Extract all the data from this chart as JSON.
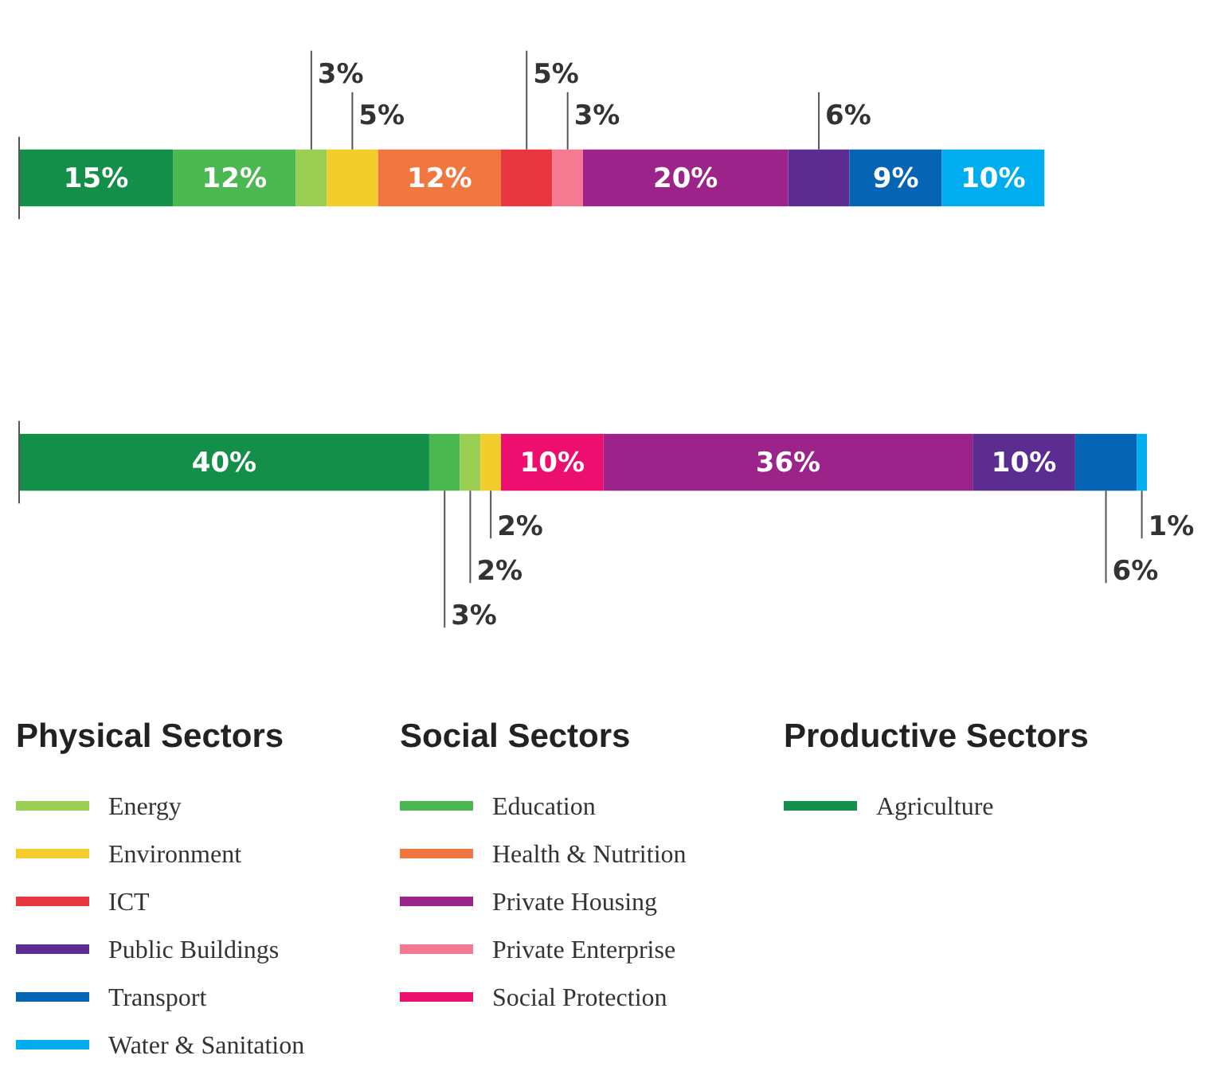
{
  "chart_data": {
    "type": "bar",
    "orientation": "horizontal",
    "stacked": true,
    "categories": [
      null,
      null
    ],
    "legend": "bottom",
    "annotations": [
      "Physical Sectors",
      "Social Sectors",
      "Productive Sectors"
    ],
    "series": [
      {
        "name": "Agriculture",
        "color": "#148f49",
        "values": [
          15,
          40
        ],
        "value_labels": [
          "15%",
          "40%"
        ]
      },
      {
        "name": "Education",
        "color": "#4cb851",
        "values": [
          12,
          3
        ],
        "value_labels": [
          "12%",
          "3%"
        ]
      },
      {
        "name": "Energy",
        "color": "#9bcf53",
        "values": [
          3,
          2
        ],
        "value_labels": [
          "3%",
          "2%"
        ]
      },
      {
        "name": "Environment",
        "color": "#f2cd2c",
        "values": [
          5,
          2
        ],
        "value_labels": [
          "5%",
          "2%"
        ]
      },
      {
        "name": "Health & Nutrition",
        "color": "#f07840",
        "values": [
          12,
          null
        ],
        "value_labels": [
          "12%",
          null
        ]
      },
      {
        "name": "ICT",
        "color": "#e8383f",
        "values": [
          5,
          null
        ],
        "value_labels": [
          "5%",
          null
        ]
      },
      {
        "name": "Private Enterprise",
        "color": "#f47a92",
        "values": [
          3,
          null
        ],
        "value_labels": [
          "3%",
          null
        ]
      },
      {
        "name": "Social Protection",
        "color": "#ec0f6f",
        "values": [
          null,
          10
        ],
        "value_labels": [
          null,
          "10%"
        ]
      },
      {
        "name": "Private Housing",
        "color": "#9b2389",
        "values": [
          20,
          36
        ],
        "value_labels": [
          "20%",
          "36%"
        ]
      },
      {
        "name": "Public Buildings",
        "color": "#5c2d91",
        "values": [
          6,
          10
        ],
        "value_labels": [
          "6%",
          "10%"
        ]
      },
      {
        "name": "Transport",
        "color": "#0565b4",
        "values": [
          9,
          6
        ],
        "value_labels": [
          "9%",
          "6%"
        ]
      },
      {
        "name": "Water & Sanitation",
        "color": "#00aeef",
        "values": [
          10,
          1
        ],
        "value_labels": [
          "10%",
          "1%"
        ]
      }
    ]
  }
}
